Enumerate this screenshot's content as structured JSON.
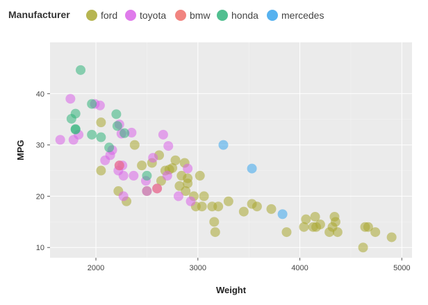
{
  "chart_data": {
    "type": "scatter",
    "xlabel": "Weight",
    "ylabel": "MPG",
    "xlim": [
      1550,
      5100
    ],
    "ylim": [
      8,
      50
    ],
    "xticks": [
      2000,
      3000,
      4000,
      5000
    ],
    "yticks": [
      10,
      20,
      30,
      40
    ],
    "grid": true,
    "legend": {
      "title": "Manufacturer",
      "placement": "top-left"
    },
    "series": [
      {
        "name": "ford",
        "color": "#a9a832",
        "points": [
          [
            2050,
            34.4
          ],
          [
            2050,
            25
          ],
          [
            2220,
            21
          ],
          [
            2300,
            19
          ],
          [
            2380,
            30
          ],
          [
            2450,
            26
          ],
          [
            2500,
            21
          ],
          [
            2550,
            26.5
          ],
          [
            2620,
            28
          ],
          [
            2640,
            23
          ],
          [
            2680,
            25
          ],
          [
            2720,
            25.2
          ],
          [
            2750,
            25.5
          ],
          [
            2780,
            27
          ],
          [
            2820,
            22
          ],
          [
            2840,
            24
          ],
          [
            2870,
            26.5
          ],
          [
            2880,
            21
          ],
          [
            2900,
            22.5
          ],
          [
            2900,
            23.5
          ],
          [
            2960,
            20
          ],
          [
            2980,
            18
          ],
          [
            3020,
            24
          ],
          [
            3040,
            18
          ],
          [
            3060,
            20
          ],
          [
            3140,
            18
          ],
          [
            3160,
            15
          ],
          [
            3170,
            13
          ],
          [
            3200,
            18
          ],
          [
            3300,
            19
          ],
          [
            3450,
            17
          ],
          [
            3530,
            18.5
          ],
          [
            3580,
            18
          ],
          [
            3720,
            17.5
          ],
          [
            3870,
            13
          ],
          [
            4040,
            14
          ],
          [
            4060,
            15.5
          ],
          [
            4130,
            14
          ],
          [
            4150,
            16
          ],
          [
            4160,
            14
          ],
          [
            4200,
            14.5
          ],
          [
            4290,
            13
          ],
          [
            4320,
            14
          ],
          [
            4340,
            16
          ],
          [
            4350,
            15
          ],
          [
            4370,
            13
          ],
          [
            4620,
            10
          ],
          [
            4640,
            14
          ],
          [
            4670,
            14
          ],
          [
            4740,
            13
          ],
          [
            4900,
            12
          ]
        ]
      },
      {
        "name": "toyota",
        "color": "#d964e8",
        "points": [
          [
            1650,
            31
          ],
          [
            1750,
            39
          ],
          [
            1780,
            31
          ],
          [
            1830,
            32
          ],
          [
            1990,
            38
          ],
          [
            2040,
            37.7
          ],
          [
            2090,
            27
          ],
          [
            2140,
            28
          ],
          [
            2160,
            29
          ],
          [
            2220,
            25
          ],
          [
            2230,
            26
          ],
          [
            2230,
            34
          ],
          [
            2250,
            32.2
          ],
          [
            2260,
            26
          ],
          [
            2270,
            24
          ],
          [
            2270,
            20
          ],
          [
            2350,
            32.4
          ],
          [
            2370,
            24
          ],
          [
            2490,
            23
          ],
          [
            2500,
            21
          ],
          [
            2560,
            27.5
          ],
          [
            2600,
            21.5
          ],
          [
            2660,
            32
          ],
          [
            2700,
            24
          ],
          [
            2710,
            29.8
          ],
          [
            2810,
            20
          ],
          [
            2900,
            25.4
          ],
          [
            2930,
            19
          ]
        ]
      },
      {
        "name": "bmw",
        "color": "#ef6f6a",
        "points": [
          [
            2230,
            26
          ],
          [
            2600,
            21.5
          ]
        ]
      },
      {
        "name": "honda",
        "color": "#33b47c",
        "points": [
          [
            1760,
            35.1
          ],
          [
            1800,
            36.1
          ],
          [
            1800,
            33
          ],
          [
            1800,
            33.1
          ],
          [
            1850,
            44.6
          ],
          [
            1960,
            38
          ],
          [
            1960,
            32
          ],
          [
            2050,
            31.5
          ],
          [
            2130,
            29.5
          ],
          [
            2200,
            36
          ],
          [
            2210,
            33.7
          ],
          [
            2280,
            32.3
          ],
          [
            2500,
            24
          ]
        ]
      },
      {
        "name": "mercedes",
        "color": "#3aa5ec",
        "points": [
          [
            3250,
            30
          ],
          [
            3530,
            25.4
          ],
          [
            3830,
            16.5
          ]
        ]
      }
    ]
  }
}
